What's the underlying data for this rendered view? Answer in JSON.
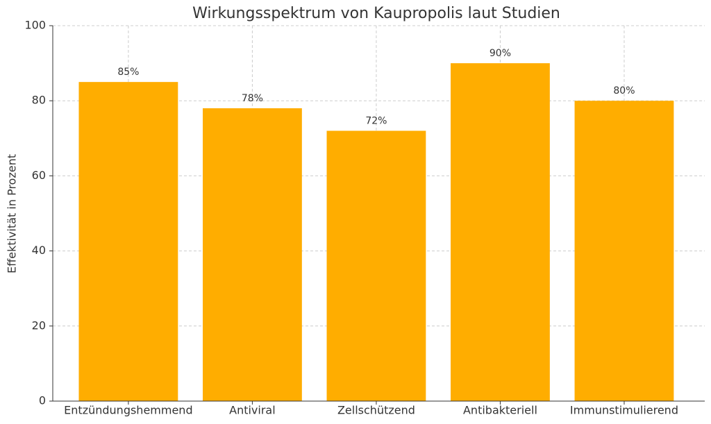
{
  "chart_data": {
    "type": "bar",
    "title": "Wirkungsspektrum von Kaupropolis laut Studien",
    "y_label": "Effektivität in Prozent",
    "categories": [
      "Entzündungshemmend",
      "Antiviral",
      "Zellschützend",
      "Antibakteriell",
      "Immunstimulierend"
    ],
    "values": [
      85,
      78,
      72,
      90,
      80
    ],
    "value_labels": [
      "85%",
      "78%",
      "72%",
      "90%",
      "80%"
    ],
    "color": "#ffad00",
    "ylim": [
      0,
      100
    ],
    "yticks": [
      0,
      20,
      40,
      60,
      80,
      100
    ],
    "grid": true
  }
}
